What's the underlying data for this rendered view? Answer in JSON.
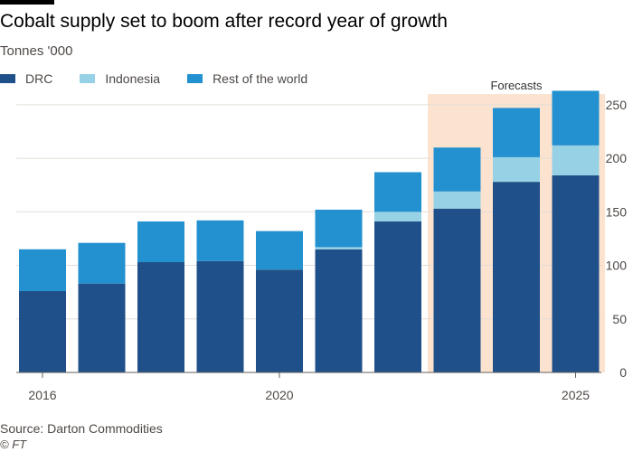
{
  "title": "Cobalt supply set to boom after record year of growth",
  "subtitle": "Tonnes '000",
  "source": "Source: Darton Commodities",
  "copyright": "© FT",
  "colors": {
    "DRC": "#1f5089",
    "Indonesia": "#96d1e6",
    "Rest of the world": "#2390d0",
    "forecast_band": "#fce3cf",
    "grid": "#e3ddd8",
    "axis": "#66605c"
  },
  "chart_data": {
    "type": "bar",
    "stacked": true,
    "categories": [
      "2016",
      "2017",
      "2018",
      "2019",
      "2020",
      "2021",
      "2022",
      "2023",
      "2024",
      "2025"
    ],
    "x_tick_labels": [
      "2016",
      "2020",
      "2025"
    ],
    "series": [
      {
        "name": "DRC",
        "values": [
          76,
          83,
          103,
          104,
          96,
          115,
          141,
          153,
          178,
          184
        ]
      },
      {
        "name": "Indonesia",
        "values": [
          0,
          0,
          0,
          0,
          0,
          2,
          9,
          16,
          23,
          28
        ]
      },
      {
        "name": "Rest of the world",
        "values": [
          39,
          38,
          38,
          38,
          36,
          35,
          37,
          41,
          46,
          51
        ]
      }
    ],
    "annotation": "Forecasts",
    "forecast_categories": [
      "2023",
      "2024",
      "2025"
    ],
    "ylim": [
      0,
      260
    ],
    "yticks": [
      0,
      50,
      100,
      150,
      200,
      250
    ],
    "y_axis_side": "right",
    "grid": true,
    "legend_position": "top-left"
  }
}
